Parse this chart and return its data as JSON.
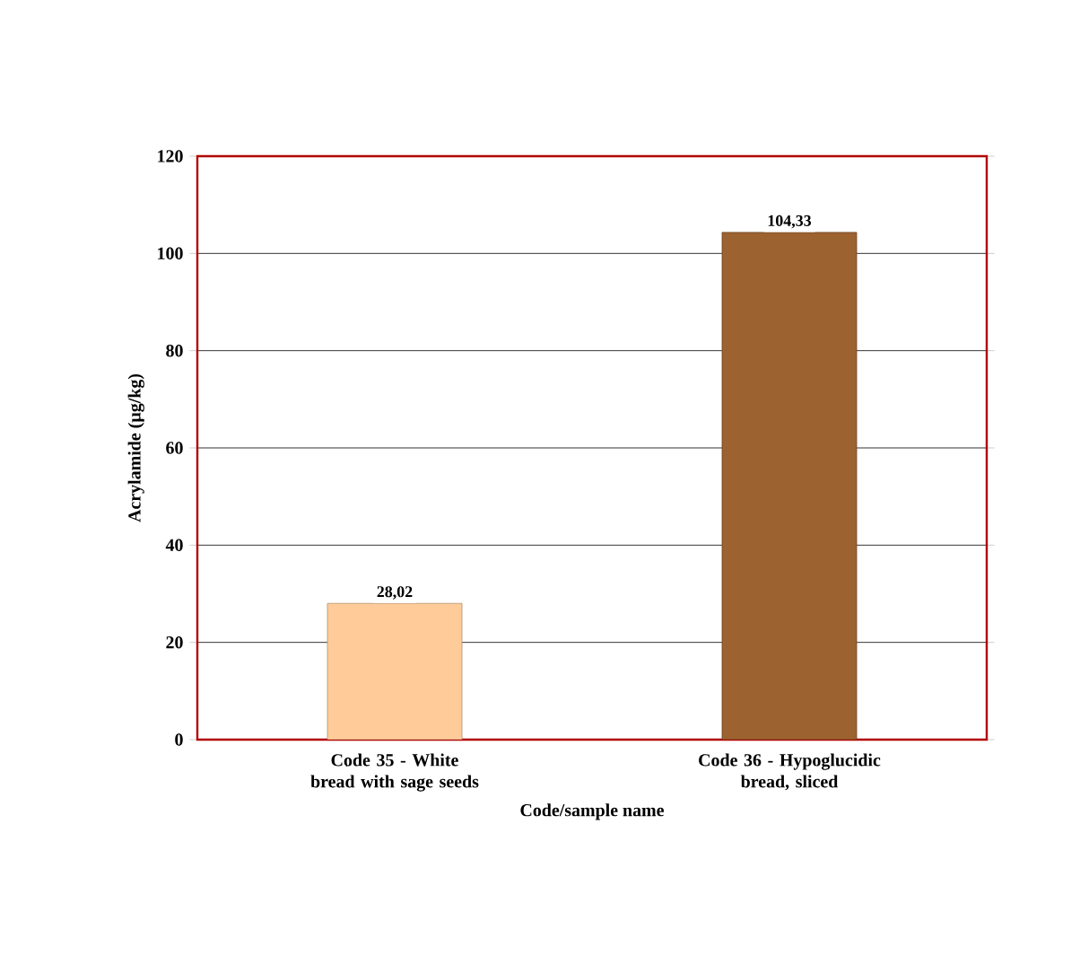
{
  "chart_data": {
    "type": "bar",
    "xlabel": "Code/sample name",
    "ylabel": "Acrylamide (µg/kg)",
    "categories": [
      "Code 35 - White bread with sage seeds",
      "Code 36 - Hypoglucidic bread, sliced"
    ],
    "values": [
      28.02,
      104.33
    ],
    "colors": [
      "#ffcc99",
      "#9c6230"
    ],
    "value_labels": [
      "28,02",
      "104,33"
    ],
    "ylim": [
      0,
      120
    ],
    "yticks": [
      0,
      20,
      40,
      60,
      80,
      100,
      120
    ],
    "grid": "y"
  }
}
